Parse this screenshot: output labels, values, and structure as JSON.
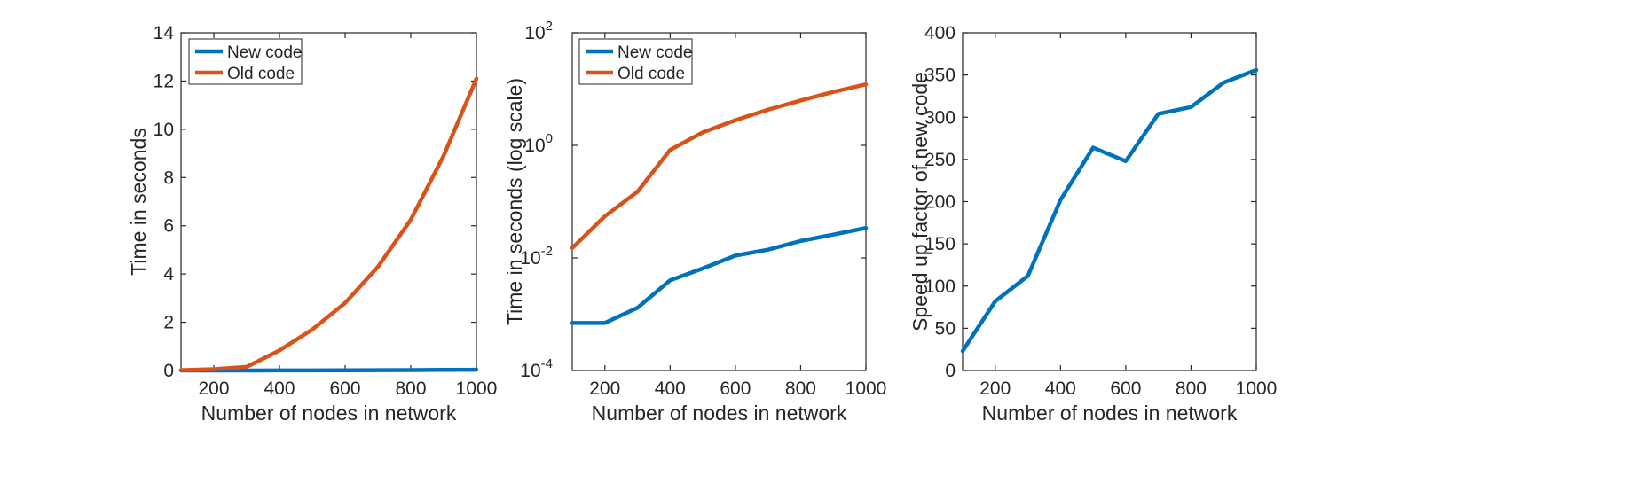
{
  "colors": {
    "new_code": "#0072BD",
    "old_code": "#D95319",
    "axis": "#262626"
  },
  "chart_data": [
    {
      "type": "line",
      "xlabel": "Number of nodes in network",
      "ylabel": "Time in seconds",
      "xlim": [
        100,
        1000
      ],
      "ylim": [
        0,
        14
      ],
      "yscale": "linear",
      "grid": false,
      "legend_position": "top-left",
      "xticks": [
        200,
        400,
        600,
        800,
        1000
      ],
      "yticks": [
        0,
        2,
        4,
        6,
        8,
        10,
        12,
        14
      ],
      "ytick_labels": [
        "0",
        "2",
        "4",
        "6",
        "8",
        "10",
        "12",
        "14"
      ],
      "x": [
        100,
        200,
        300,
        400,
        500,
        600,
        700,
        800,
        900,
        1000
      ],
      "series": [
        {
          "name": "New code",
          "color": "#0072BD",
          "values": [
            0.0007,
            0.0007,
            0.0013,
            0.004,
            0.0065,
            0.011,
            0.014,
            0.02,
            0.026,
            0.034
          ]
        },
        {
          "name": "Old code",
          "color": "#D95319",
          "values": [
            0.015,
            0.055,
            0.15,
            0.83,
            1.7,
            2.8,
            4.3,
            6.25,
            8.9,
            12.1
          ]
        }
      ]
    },
    {
      "type": "line",
      "xlabel": "Number of nodes in network",
      "ylabel": "Time in seconds (log scale)",
      "xlim": [
        100,
        1000
      ],
      "ylim": [
        0.0001,
        100
      ],
      "yscale": "log",
      "grid": false,
      "legend_position": "top-left",
      "xticks": [
        200,
        400,
        600,
        800,
        1000
      ],
      "yticks": [
        0.0001,
        0.01,
        1,
        100
      ],
      "ytick_labels": [
        {
          "base": "10",
          "exp": "-4"
        },
        {
          "base": "10",
          "exp": "-2"
        },
        {
          "base": "10",
          "exp": "0"
        },
        {
          "base": "10",
          "exp": "2"
        }
      ],
      "x": [
        100,
        200,
        300,
        400,
        500,
        600,
        700,
        800,
        900,
        1000
      ],
      "series": [
        {
          "name": "New code",
          "color": "#0072BD",
          "values": [
            0.0007,
            0.0007,
            0.0013,
            0.004,
            0.0065,
            0.011,
            0.014,
            0.02,
            0.026,
            0.034
          ]
        },
        {
          "name": "Old code",
          "color": "#D95319",
          "values": [
            0.015,
            0.055,
            0.15,
            0.83,
            1.7,
            2.8,
            4.3,
            6.25,
            8.9,
            12.1
          ]
        }
      ]
    },
    {
      "type": "line",
      "xlabel": "Number of nodes in network",
      "ylabel": "Speed up factor of new code",
      "xlim": [
        100,
        1000
      ],
      "ylim": [
        0,
        400
      ],
      "yscale": "linear",
      "grid": false,
      "legend_position": "none",
      "xticks": [
        200,
        400,
        600,
        800,
        1000
      ],
      "yticks": [
        0,
        50,
        100,
        150,
        200,
        250,
        300,
        350,
        400
      ],
      "ytick_labels": [
        "0",
        "50",
        "100",
        "150",
        "200",
        "250",
        "300",
        "350",
        "400"
      ],
      "x": [
        100,
        200,
        300,
        400,
        500,
        600,
        700,
        800,
        900,
        1000
      ],
      "series": [
        {
          "color": "#0072BD",
          "values": [
            23,
            82,
            112,
            202,
            264,
            248,
            304,
            312,
            341,
            356
          ]
        }
      ]
    }
  ]
}
